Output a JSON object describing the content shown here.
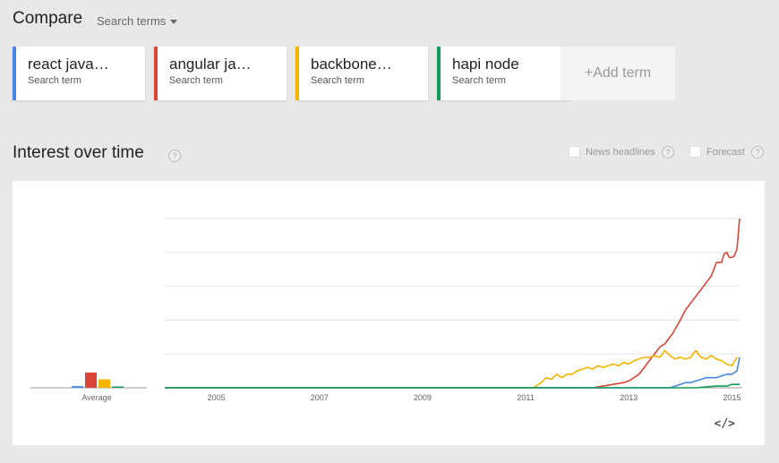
{
  "header": {
    "title": "Compare",
    "dropdown_label": "Search terms"
  },
  "terms": [
    {
      "name": "react java…",
      "sub": "Search term",
      "color": "#4a86e8"
    },
    {
      "name": "angular ja…",
      "sub": "Search term",
      "color": "#db4437"
    },
    {
      "name": "backbone…",
      "sub": "Search term",
      "color": "#f4b400"
    },
    {
      "name": "hapi node",
      "sub": "Search term",
      "color": "#0f9d58"
    }
  ],
  "add_term_label": "+Add term",
  "interest": {
    "title": "Interest over time",
    "help": "?",
    "options": [
      {
        "label": "News headlines",
        "help": "?"
      },
      {
        "label": "Forecast",
        "help": "?"
      }
    ],
    "embed": "</>"
  },
  "chart_data": {
    "type": "line",
    "x_ticks": [
      "2005",
      "2007",
      "2009",
      "2011",
      "2013",
      "2015"
    ],
    "average_label": "Average",
    "ylim": [
      0,
      100
    ],
    "grid": true,
    "average": [
      {
        "name": "react java…",
        "value": 1
      },
      {
        "name": "angular ja…",
        "value": 9
      },
      {
        "name": "backbone…",
        "value": 5
      },
      {
        "name": "hapi node",
        "value": 0.5
      }
    ],
    "series": [
      {
        "name": "angular ja…",
        "points": [
          [
            2004.0,
            0
          ],
          [
            2012.3,
            0
          ],
          [
            2012.5,
            1
          ],
          [
            2012.7,
            2
          ],
          [
            2012.9,
            3
          ],
          [
            2013.0,
            4
          ],
          [
            2013.1,
            6
          ],
          [
            2013.2,
            8
          ],
          [
            2013.35,
            14
          ],
          [
            2013.5,
            20
          ],
          [
            2013.6,
            24
          ],
          [
            2013.7,
            26
          ],
          [
            2013.85,
            32
          ],
          [
            2014.0,
            40
          ],
          [
            2014.1,
            46
          ],
          [
            2014.25,
            52
          ],
          [
            2014.4,
            58
          ],
          [
            2014.5,
            62
          ],
          [
            2014.6,
            66
          ],
          [
            2014.7,
            74
          ],
          [
            2014.8,
            74
          ],
          [
            2014.85,
            79
          ],
          [
            2014.9,
            80
          ],
          [
            2014.95,
            77
          ],
          [
            2015.0,
            77
          ],
          [
            2015.05,
            78
          ],
          [
            2015.1,
            82
          ],
          [
            2015.15,
            100
          ]
        ]
      },
      {
        "name": "backbone…",
        "points": [
          [
            2004.0,
            0
          ],
          [
            2011.15,
            0
          ],
          [
            2011.3,
            3
          ],
          [
            2011.4,
            6
          ],
          [
            2011.5,
            5
          ],
          [
            2011.6,
            8
          ],
          [
            2011.7,
            6
          ],
          [
            2011.8,
            8
          ],
          [
            2011.9,
            8
          ],
          [
            2012.0,
            10
          ],
          [
            2012.1,
            11
          ],
          [
            2012.2,
            12
          ],
          [
            2012.3,
            11
          ],
          [
            2012.4,
            13
          ],
          [
            2012.5,
            12
          ],
          [
            2012.6,
            13
          ],
          [
            2012.7,
            14
          ],
          [
            2012.8,
            13
          ],
          [
            2012.9,
            15
          ],
          [
            2013.0,
            14
          ],
          [
            2013.1,
            16
          ],
          [
            2013.2,
            17
          ],
          [
            2013.3,
            18
          ],
          [
            2013.4,
            18
          ],
          [
            2013.5,
            19
          ],
          [
            2013.6,
            18
          ],
          [
            2013.7,
            22
          ],
          [
            2013.8,
            19
          ],
          [
            2013.9,
            17
          ],
          [
            2014.0,
            18
          ],
          [
            2014.1,
            17
          ],
          [
            2014.2,
            18
          ],
          [
            2014.3,
            22
          ],
          [
            2014.4,
            18
          ],
          [
            2014.5,
            17
          ],
          [
            2014.6,
            19
          ],
          [
            2014.7,
            17
          ],
          [
            2014.8,
            16
          ],
          [
            2014.9,
            14
          ],
          [
            2015.0,
            13
          ],
          [
            2015.1,
            18
          ]
        ]
      },
      {
        "name": "react java…",
        "points": [
          [
            2004.0,
            0
          ],
          [
            2013.8,
            0
          ],
          [
            2013.9,
            1
          ],
          [
            2014.0,
            2
          ],
          [
            2014.1,
            3
          ],
          [
            2014.2,
            3
          ],
          [
            2014.3,
            4
          ],
          [
            2014.4,
            5
          ],
          [
            2014.5,
            6
          ],
          [
            2014.6,
            6
          ],
          [
            2014.7,
            6
          ],
          [
            2014.8,
            7
          ],
          [
            2014.9,
            8
          ],
          [
            2015.0,
            8
          ],
          [
            2015.05,
            9
          ],
          [
            2015.1,
            10
          ],
          [
            2015.15,
            18
          ]
        ]
      },
      {
        "name": "hapi node",
        "points": [
          [
            2004.0,
            0
          ],
          [
            2014.3,
            0
          ],
          [
            2014.5,
            0.5
          ],
          [
            2014.7,
            1
          ],
          [
            2014.9,
            1
          ],
          [
            2015.0,
            2
          ],
          [
            2015.1,
            2
          ],
          [
            2015.15,
            2
          ]
        ]
      }
    ]
  }
}
